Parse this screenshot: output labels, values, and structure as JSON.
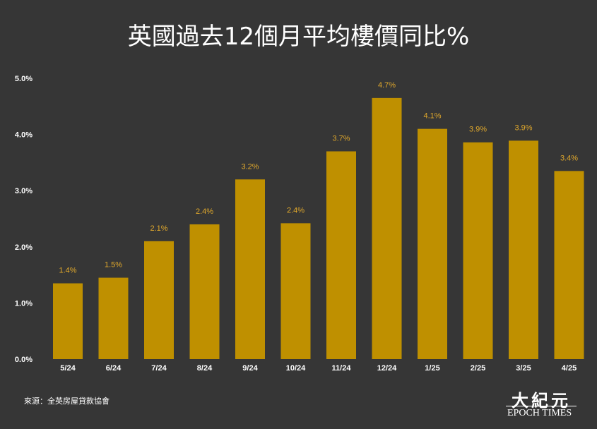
{
  "title": "英國過去12個月平均樓價同比%",
  "source": "來源：全英房屋貸款協會",
  "logo": {
    "chinese": "大紀元",
    "english": "EPOCH TIMES"
  },
  "colors": {
    "background": "#363636",
    "bar": "#bf9000",
    "data_label": "#e0a82c",
    "text": "#ffffff"
  },
  "chart_data": {
    "type": "bar",
    "title": "英國過去12個月平均樓價同比%",
    "categories": [
      "5/24",
      "6/24",
      "7/24",
      "8/24",
      "9/24",
      "10/24",
      "11/24",
      "12/24",
      "1/25",
      "2/25",
      "3/25",
      "4/25"
    ],
    "values": [
      1.35,
      1.45,
      2.1,
      2.4,
      3.2,
      2.42,
      3.7,
      4.65,
      4.1,
      3.86,
      3.89,
      3.35
    ],
    "data_labels": [
      "1.4%",
      "1.5%",
      "2.1%",
      "2.4%",
      "3.2%",
      "2.4%",
      "3.7%",
      "4.7%",
      "4.1%",
      "3.9%",
      "3.9%",
      "3.4%"
    ],
    "yticks": [
      "0.0%",
      "1.0%",
      "2.0%",
      "3.0%",
      "4.0%",
      "5.0%"
    ],
    "ylim": [
      0,
      5
    ],
    "xlabel": "",
    "ylabel": "",
    "grid": false,
    "legend": "none"
  }
}
